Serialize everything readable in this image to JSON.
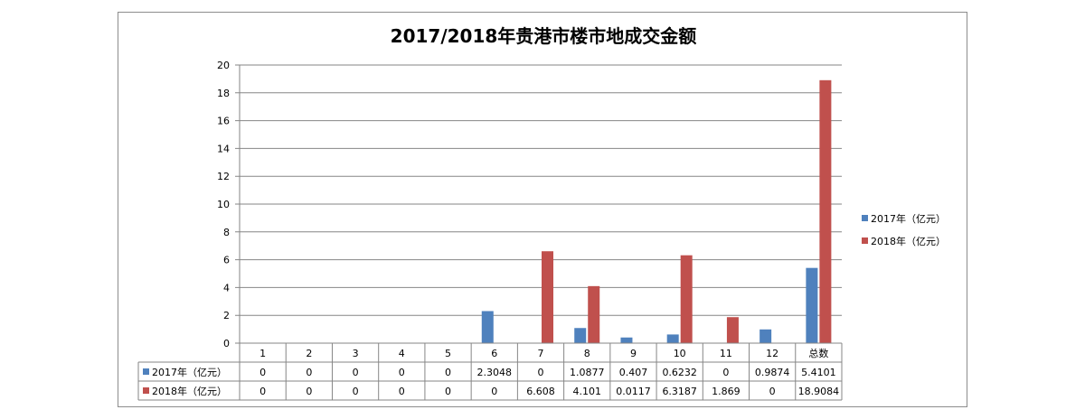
{
  "chart_data": {
    "type": "bar",
    "title": "2017/2018年贵港市楼市地成交金额",
    "categories": [
      "1",
      "2",
      "3",
      "4",
      "5",
      "6",
      "7",
      "8",
      "9",
      "10",
      "11",
      "12",
      "总数"
    ],
    "series": [
      {
        "name": "2017年（亿元）",
        "color": "#4f81bd",
        "values": [
          0,
          0,
          0,
          0,
          0,
          2.3048,
          0,
          1.0877,
          0.407,
          0.6232,
          0,
          0.9874,
          5.4101
        ],
        "labels": [
          "0",
          "0",
          "0",
          "0",
          "0",
          "2.3048",
          "0",
          "1.0877",
          "0.407",
          "0.6232",
          "0",
          "0.9874",
          "5.4101"
        ]
      },
      {
        "name": "2018年（亿元）",
        "color": "#c0504d",
        "values": [
          0,
          0,
          0,
          0,
          0,
          0,
          6.608,
          4.101,
          0.0117,
          6.3187,
          1.869,
          0,
          18.9084
        ],
        "labels": [
          "0",
          "0",
          "0",
          "0",
          "0",
          "0",
          "6.608",
          "4.101",
          "0.0117",
          "6.3187",
          "1.869",
          "0",
          "18.9084"
        ]
      }
    ],
    "ylim": [
      0,
      20
    ],
    "yticks": [
      "0",
      "2",
      "4",
      "6",
      "8",
      "10",
      "12",
      "14",
      "16",
      "18",
      "20"
    ],
    "grid": true,
    "legend": "right",
    "data_table": true
  }
}
